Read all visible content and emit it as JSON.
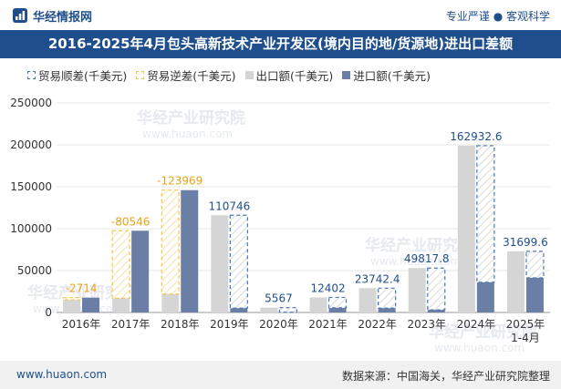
{
  "header": {
    "brand": "华经情报网",
    "tagline": "专业严谨 ● 客观科学",
    "title": "2016-2025年4月包头高新技术产业开发区(境内目的地/货源地)进出口差额"
  },
  "watermark": {
    "text": "华经产业研究院",
    "url": "www.huaon.com"
  },
  "footer": {
    "website": "www.huaon.com",
    "source": "数据来源：中国海关，华经产业研究院整理"
  },
  "colors": {
    "title_bg": "#1f4e8c",
    "export": "#d5d5d5",
    "import": "#6b7ea6",
    "surplus_border": "#4a78b0",
    "deficit_border": "#f2c84b",
    "label_surplus": "#1f4e8c",
    "label_deficit": "#e8a317"
  },
  "chart_data": {
    "type": "bar",
    "legend": [
      "贸易顺差(千美元)",
      "贸易逆差(千美元)",
      "出口额(千美元)",
      "进口额(千美元)"
    ],
    "legend_position": "top-left",
    "categories": [
      "2016年",
      "2017年",
      "2018年",
      "2019年",
      "2020年",
      "2021年",
      "2022年",
      "2023年",
      "2024年",
      "2025年\n1-4月"
    ],
    "series": [
      {
        "name": "出口额(千美元)",
        "values": [
          15000,
          17000,
          22000,
          116000,
          5800,
          18000,
          29000,
          53000,
          199000,
          73000
        ]
      },
      {
        "name": "进口额(千美元)",
        "values": [
          17714,
          97546,
          145969,
          5254,
          233,
          5598,
          5257.6,
          3182.2,
          36067.4,
          41300.4
        ]
      }
    ],
    "balance": [
      {
        "value": -2714,
        "label": "-2714",
        "type": "deficit"
      },
      {
        "value": -80546,
        "label": "-80546",
        "type": "deficit"
      },
      {
        "value": -123969,
        "label": "-123969",
        "type": "deficit"
      },
      {
        "value": 110746,
        "label": "110746",
        "type": "surplus"
      },
      {
        "value": 5567,
        "label": "5567",
        "type": "surplus"
      },
      {
        "value": 12402,
        "label": "12402",
        "type": "surplus"
      },
      {
        "value": 23742.4,
        "label": "23742.4",
        "type": "surplus"
      },
      {
        "value": 49817.8,
        "label": "49817.8",
        "type": "surplus"
      },
      {
        "value": 162932.6,
        "label": "162932.6",
        "type": "surplus"
      },
      {
        "value": 31699.6,
        "label": "31699.6",
        "type": "surplus"
      }
    ],
    "ylim": [
      0,
      250000
    ],
    "yticks": [
      0,
      50000,
      100000,
      150000,
      200000,
      250000
    ],
    "grid": true
  }
}
